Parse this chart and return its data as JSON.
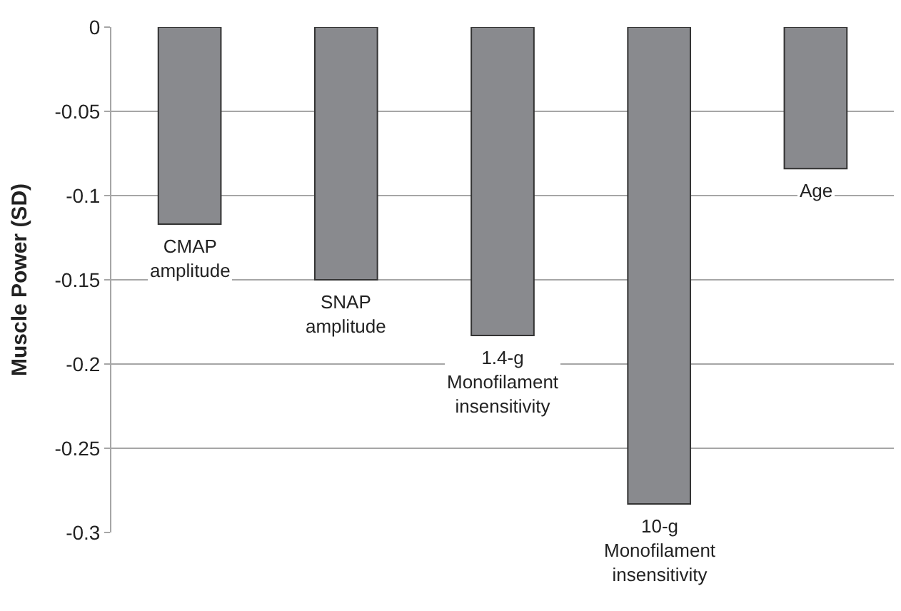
{
  "chart_data": {
    "type": "bar",
    "ylabel": "Muscle Power (SD)",
    "categories": [
      "CMAP amplitude",
      "SNAP amplitude",
      "1.4-g Monofilament insensitivity",
      "10-g Monofilament insensitivity",
      "Age"
    ],
    "values": [
      -0.117,
      -0.15,
      -0.183,
      -0.283,
      -0.084
    ],
    "color": "#898a8e",
    "ylim": [
      -0.3,
      0
    ],
    "yticks": [
      {
        "value": -0.3,
        "label": "-0.3"
      },
      {
        "value": -0.25,
        "label": "-0.25"
      },
      {
        "value": -0.2,
        "label": "-0.2"
      },
      {
        "value": -0.15,
        "label": "-0.15"
      },
      {
        "value": -0.1,
        "label": "-0.1"
      },
      {
        "value": -0.05,
        "label": "-0.05"
      },
      {
        "value": 0,
        "label": "0"
      }
    ],
    "grid": "y",
    "legend": false
  }
}
